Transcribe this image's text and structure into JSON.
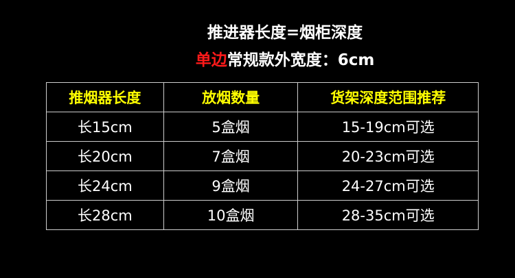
{
  "title": "推进器长度=烟柜深度",
  "subtitle": {
    "highlight": "单边",
    "rest": "常规款外宽度：6cm",
    "highlight_color": "#ff1a1a"
  },
  "table": {
    "header_color": "#ffff00",
    "headers": [
      "推烟器长度",
      "放烟数量",
      "货架深度范围推荐"
    ],
    "rows": [
      [
        "长15cm",
        "5盒烟",
        "15-19cm可选"
      ],
      [
        "长20cm",
        "7盒烟",
        "20-23cm可选"
      ],
      [
        "长24cm",
        "9盒烟",
        "24-27cm可选"
      ],
      [
        "长28cm",
        "10盒烟",
        "28-35cm可选"
      ]
    ]
  }
}
